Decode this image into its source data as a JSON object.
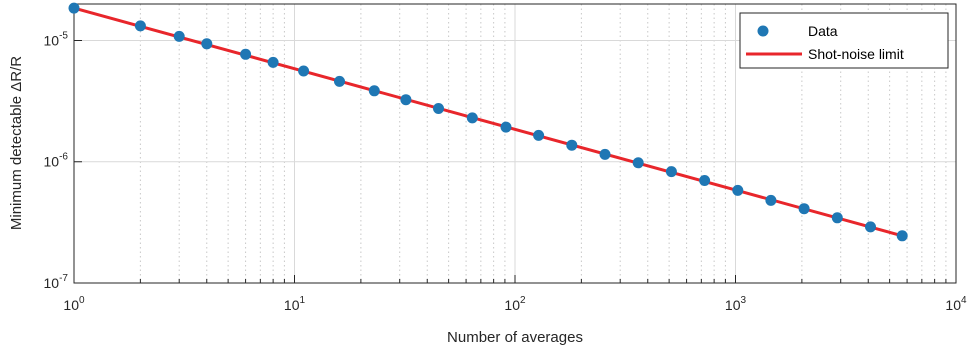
{
  "chart_data": {
    "type": "scatter",
    "title": "",
    "xlabel": "Number of averages",
    "ylabel": "Minimum detectable ΔR/R",
    "xscale": "log",
    "yscale": "log",
    "xlim": [
      1,
      10000
    ],
    "ylim": [
      1e-07,
      2e-05
    ],
    "grid": "on (major and minor)",
    "legend_position": "top-right",
    "x_ticks": [
      {
        "value": 1,
        "base": "10",
        "exp": "0"
      },
      {
        "value": 10,
        "base": "10",
        "exp": "1"
      },
      {
        "value": 100,
        "base": "10",
        "exp": "2"
      },
      {
        "value": 1000,
        "base": "10",
        "exp": "3"
      },
      {
        "value": 10000,
        "base": "10",
        "exp": "4"
      }
    ],
    "y_ticks": [
      {
        "value": 1e-07,
        "base": "10",
        "exp": "-7"
      },
      {
        "value": 1e-06,
        "base": "10",
        "exp": "-6"
      },
      {
        "value": 1e-05,
        "base": "10",
        "exp": "-5"
      }
    ],
    "series": [
      {
        "name": "Data",
        "kind": "markers",
        "color": "#1f77b4",
        "points": [
          [
            1,
            1.85e-05
          ],
          [
            2,
            1.32e-05
          ],
          [
            3,
            1.08e-05
          ],
          [
            4,
            9.4e-06
          ],
          [
            6,
            7.7e-06
          ],
          [
            8,
            6.6e-06
          ],
          [
            11,
            5.6e-06
          ],
          [
            16,
            4.6e-06
          ],
          [
            23,
            3.85e-06
          ],
          [
            32,
            3.25e-06
          ],
          [
            45,
            2.75e-06
          ],
          [
            64,
            2.3e-06
          ],
          [
            91,
            1.93e-06
          ],
          [
            128,
            1.65e-06
          ],
          [
            181,
            1.37e-06
          ],
          [
            256,
            1.15e-06
          ],
          [
            362,
            9.8e-07
          ],
          [
            512,
            8.3e-07
          ],
          [
            724,
            7e-07
          ],
          [
            1024,
            5.8e-07
          ],
          [
            1448,
            4.8e-07
          ],
          [
            2048,
            4.1e-07
          ],
          [
            2896,
            3.45e-07
          ],
          [
            4096,
            2.9e-07
          ],
          [
            5700,
            2.45e-07
          ]
        ]
      },
      {
        "name": "Shot-noise limit",
        "kind": "line",
        "color": "#e8262b",
        "points": [
          [
            1,
            1.85e-05
          ],
          [
            5700,
            2.45e-07
          ]
        ]
      }
    ]
  }
}
